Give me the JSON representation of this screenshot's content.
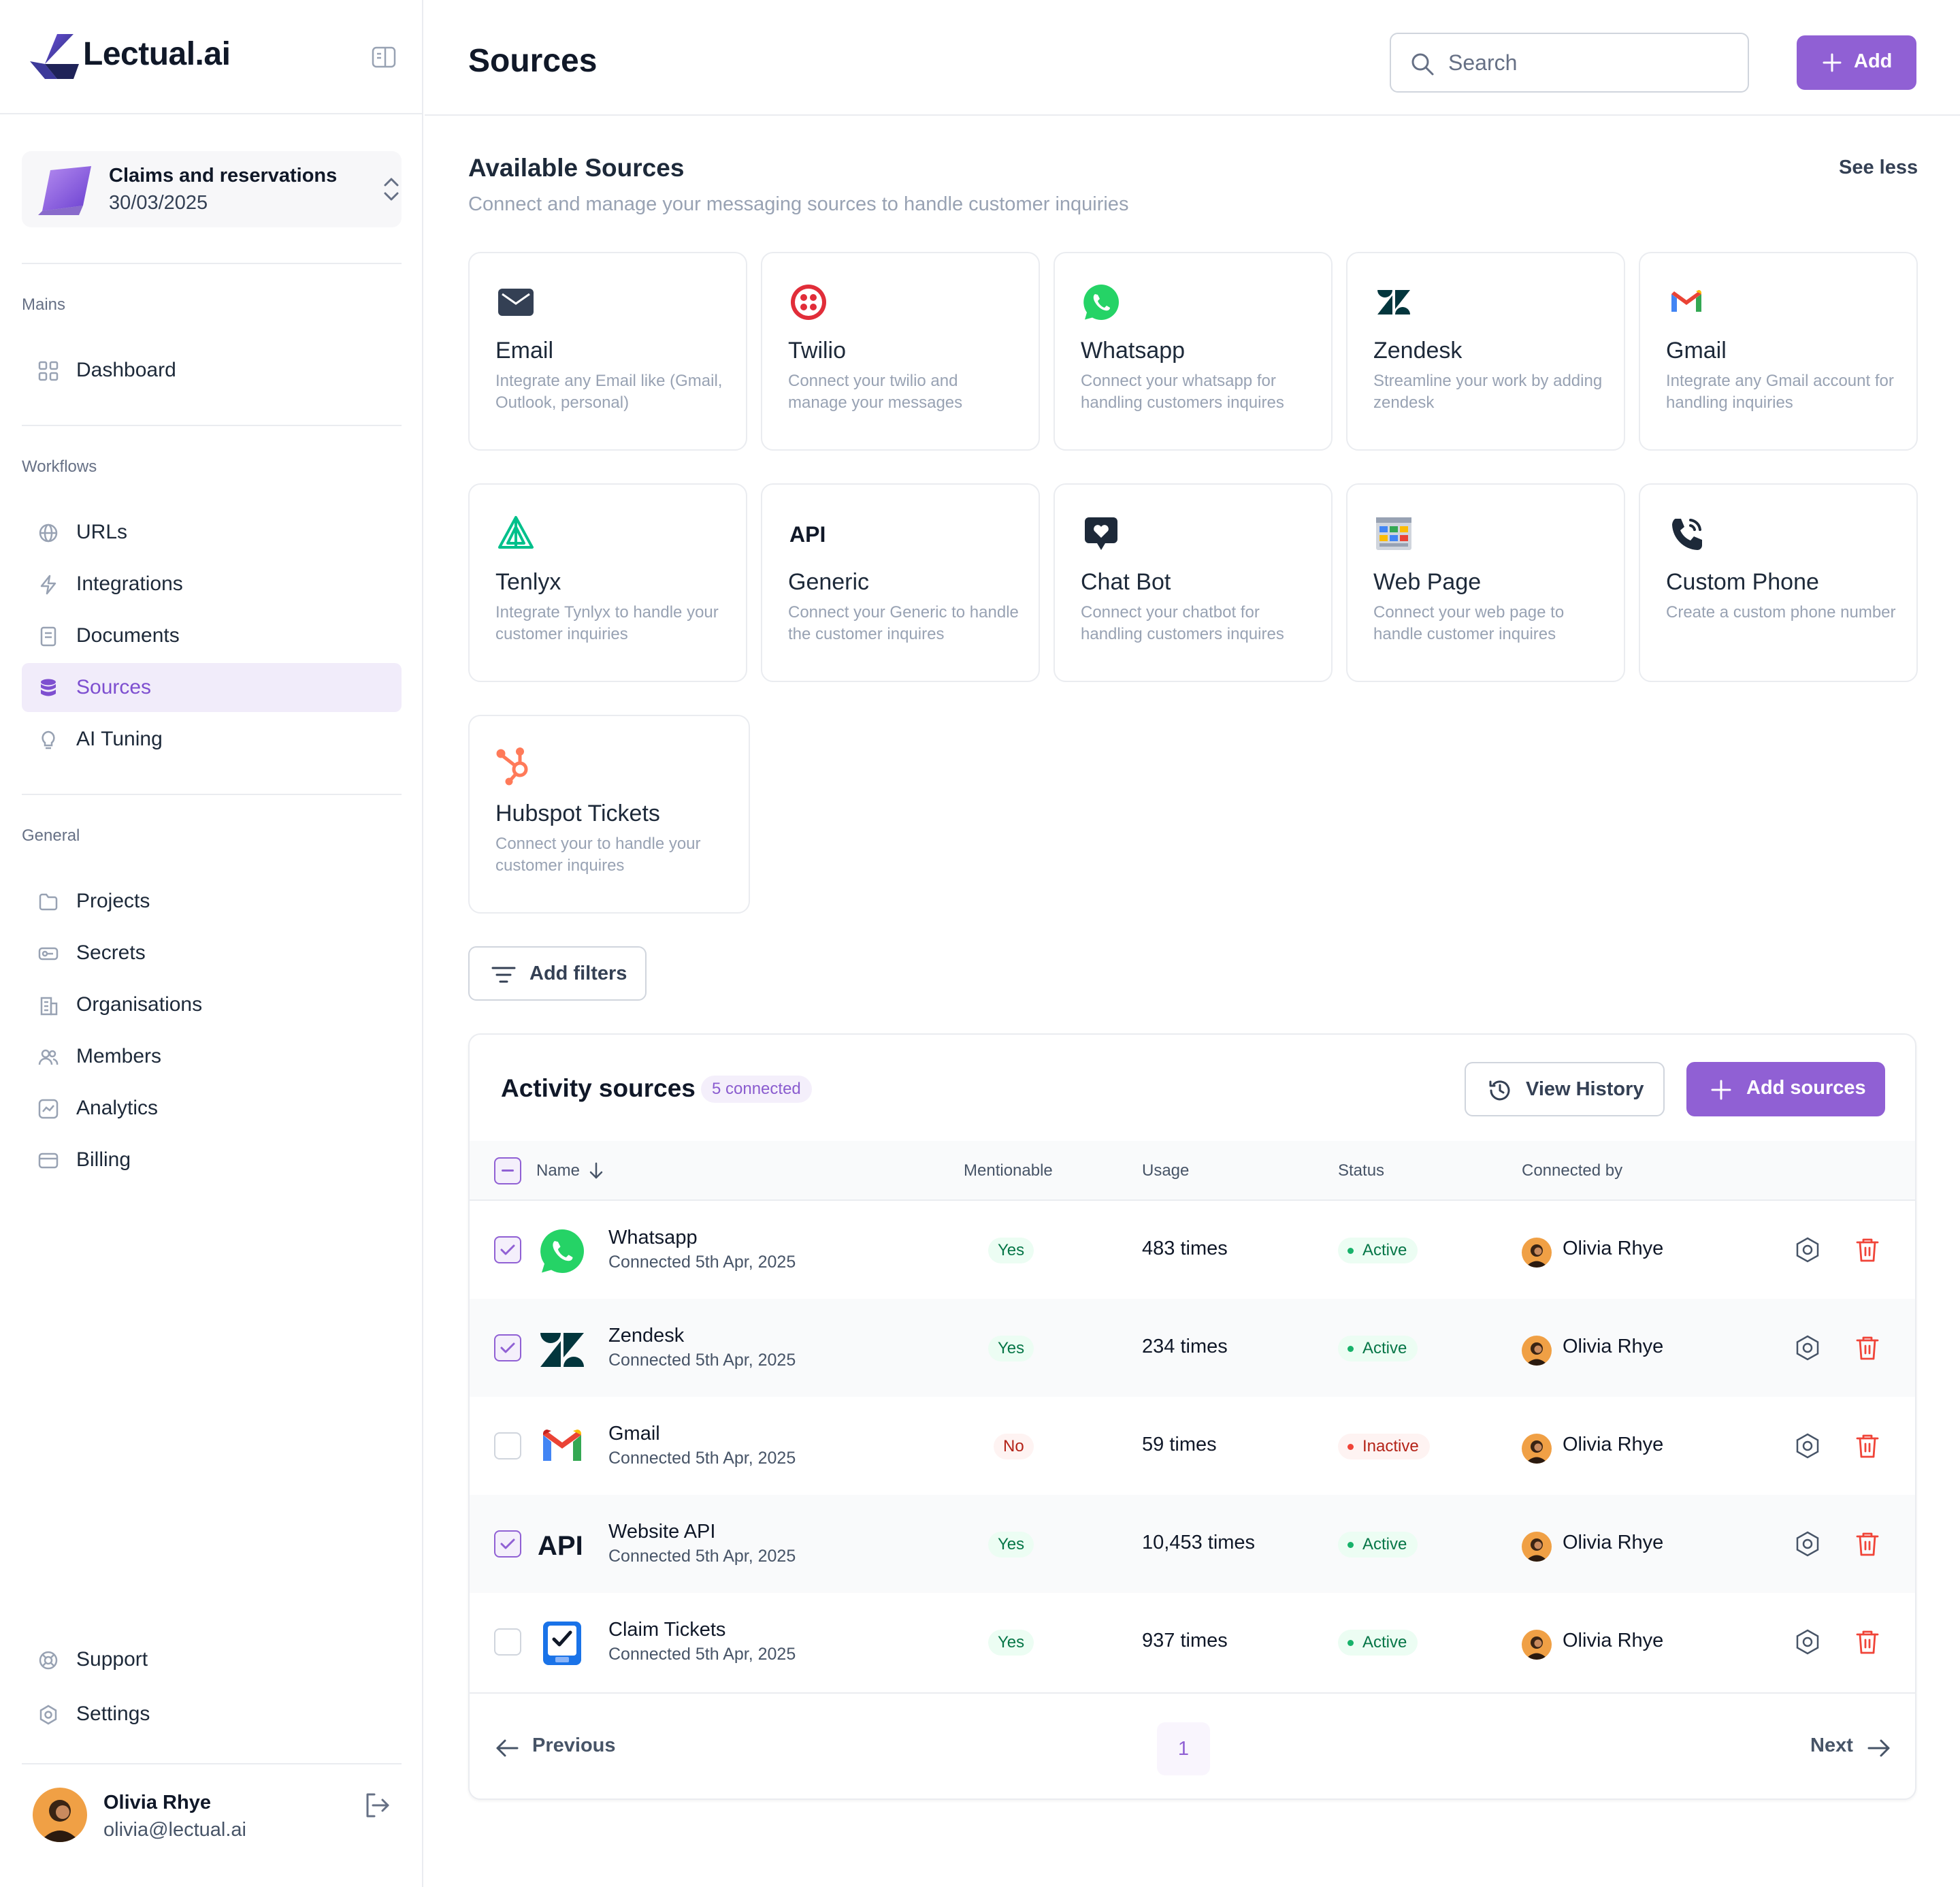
{
  "brand": {
    "name": "Lectual.ai",
    "accent": "#9060d4"
  },
  "project": {
    "name": "Claims and reservations",
    "date": "30/03/2025"
  },
  "sidebar": {
    "mains_label": "Mains",
    "workflows_label": "Workflows",
    "general_label": "General",
    "mains": [
      {
        "label": "Dashboard",
        "icon": "dashboard-icon"
      }
    ],
    "workflows": [
      {
        "label": "URLs",
        "icon": "globe-icon"
      },
      {
        "label": "Integrations",
        "icon": "bolt-icon"
      },
      {
        "label": "Documents",
        "icon": "document-icon"
      },
      {
        "label": "Sources",
        "icon": "database-icon",
        "active": true
      },
      {
        "label": "AI Tuning",
        "icon": "lightbulb-icon"
      }
    ],
    "general": [
      {
        "label": "Projects",
        "icon": "folder-icon"
      },
      {
        "label": "Secrets",
        "icon": "key-icon"
      },
      {
        "label": "Organisations",
        "icon": "building-icon"
      },
      {
        "label": "Members",
        "icon": "users-icon"
      },
      {
        "label": "Analytics",
        "icon": "chart-icon"
      },
      {
        "label": "Billing",
        "icon": "card-icon"
      }
    ],
    "footer": [
      {
        "label": "Support",
        "icon": "lifebuoy-icon"
      },
      {
        "label": "Settings",
        "icon": "settings-icon"
      }
    ]
  },
  "user": {
    "name": "Olivia Rhye",
    "email": "olivia@lectual.ai"
  },
  "header": {
    "title": "Sources",
    "search_placeholder": "Search",
    "add_label": "Add"
  },
  "available": {
    "title": "Available Sources",
    "subtitle": "Connect and manage your messaging sources to handle customer inquiries",
    "see_less": "See less",
    "cards": [
      {
        "title": "Email",
        "desc": "Integrate any Email like (Gmail, Outlook, personal)",
        "icon": "email-icon"
      },
      {
        "title": "Twilio",
        "desc": "Connect your twilio and manage your messages",
        "icon": "twilio-icon"
      },
      {
        "title": "Whatsapp",
        "desc": "Connect your whatsapp for handling customers inquires",
        "icon": "whatsapp-icon"
      },
      {
        "title": "Zendesk",
        "desc": "Streamline your work by adding zendesk",
        "icon": "zendesk-icon"
      },
      {
        "title": "Gmail",
        "desc": "Integrate any Gmail account for handling inquiries",
        "icon": "gmail-icon"
      },
      {
        "title": "Tenlyx",
        "desc": "Integrate Tynlyx to handle your customer inquiries",
        "icon": "telnyx-icon"
      },
      {
        "title": "Generic",
        "desc": "Connect your Generic to handle the customer inquires",
        "icon": "api-icon"
      },
      {
        "title": "Chat Bot",
        "desc": "Connect your chatbot for handling customers inquires",
        "icon": "chatbot-icon"
      },
      {
        "title": "Web Page",
        "desc": "Connect your web page to handle customer inquires",
        "icon": "webpage-icon"
      },
      {
        "title": "Custom Phone",
        "desc": "Create a custom phone number",
        "icon": "phone-icon"
      },
      {
        "title": "Hubspot Tickets",
        "desc": "Connect your to handle your customer inquires",
        "icon": "hubspot-icon"
      }
    ]
  },
  "filters": {
    "label": "Add filters"
  },
  "activity": {
    "title": "Activity sources",
    "badge": "5 connected",
    "view_history": "View History",
    "add_sources": "Add sources",
    "columns": {
      "name": "Name",
      "mentionable": "Mentionable",
      "usage": "Usage",
      "status": "Status",
      "connected_by": "Connected by"
    },
    "rows": [
      {
        "name": "Whatsapp",
        "date": "Connected 5th Apr, 2025",
        "mentionable": "Yes",
        "usage": "483 times",
        "status": "Active",
        "user": "Olivia Rhye",
        "checked": true,
        "logo": "whatsapp-icon"
      },
      {
        "name": "Zendesk",
        "date": "Connected 5th Apr, 2025",
        "mentionable": "Yes",
        "usage": "234 times",
        "status": "Active",
        "user": "Olivia Rhye",
        "checked": true,
        "logo": "zendesk-icon"
      },
      {
        "name": "Gmail",
        "date": "Connected 5th Apr, 2025",
        "mentionable": "No",
        "usage": "59 times",
        "status": "Inactive",
        "user": "Olivia Rhye",
        "checked": false,
        "logo": "gmail-icon"
      },
      {
        "name": "Website API",
        "date": "Connected 5th Apr, 2025",
        "mentionable": "Yes",
        "usage": "10,453 times",
        "status": "Active",
        "user": "Olivia Rhye",
        "checked": true,
        "logo": "api-icon"
      },
      {
        "name": "Claim Tickets",
        "date": "Connected 5th Apr, 2025",
        "mentionable": "Yes",
        "usage": "937 times",
        "status": "Active",
        "user": "Olivia Rhye",
        "checked": false,
        "logo": "ticket-icon"
      }
    ],
    "pagination": {
      "previous": "Previous",
      "next": "Next",
      "current_page": "1"
    }
  }
}
